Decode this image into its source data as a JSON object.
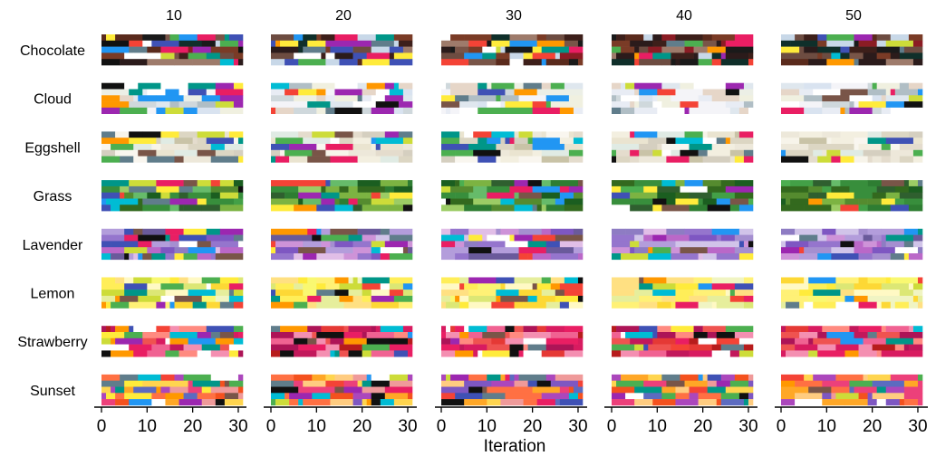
{
  "chart_data": {
    "type": "heatmap",
    "description_scope": "palette grid: rows are palette concepts, columns are checkpoints; each cell is a strip of colors with a shared x-axis",
    "column_titles": [
      "10",
      "20",
      "30",
      "40",
      "50"
    ],
    "row_labels": [
      "Chocolate",
      "Cloud",
      "Eggshell",
      "Grass",
      "Lavender",
      "Lemon",
      "Strawberry",
      "Sunset"
    ],
    "xlabel": "Iteration",
    "xlim": [
      0,
      31
    ],
    "xticks": [
      0,
      10,
      20,
      30
    ],
    "xtick_labels": [
      "0",
      "10",
      "20",
      "30"
    ],
    "strips_per_cell": 5,
    "grid": false,
    "palettes": {
      "Chocolate": [
        "#2b1b1b",
        "#3d1f1a",
        "#5a2a1c",
        "#7a3b26",
        "#1a1a1a",
        "#0f2f2a",
        "#6d4c41",
        "#8b1c24",
        "#9e7b6b",
        "#c8d8e8"
      ],
      "Cloud": [
        "#f4f4f8",
        "#e8ecf4",
        "#d9e3f0",
        "#cfd8dc",
        "#ffffff",
        "#f0f0e0",
        "#b0bec5",
        "#e6d6c8",
        "#ecefe6",
        "#dfe7ee"
      ],
      "Eggshell": [
        "#f3efe0",
        "#eae4d0",
        "#dcd6c3",
        "#f7f4ea",
        "#c9c3a7",
        "#ede8da",
        "#e0ebe4",
        "#d5cfc0",
        "#f9f6ef",
        "#e4dccd"
      ],
      "Grass": [
        "#2e7d32",
        "#388e3c",
        "#43a047",
        "#1b5e20",
        "#66bb6a",
        "#558b2f",
        "#7cb342",
        "#33691e",
        "#9ccc65",
        "#2f5f2f"
      ],
      "Lavender": [
        "#b39ddb",
        "#9575cd",
        "#7e57c2",
        "#ce93d8",
        "#ba68c8",
        "#e1bee7",
        "#8e7cc3",
        "#a58fd0",
        "#d1c4e9",
        "#6a5a9b"
      ],
      "Lemon": [
        "#fff176",
        "#ffee58",
        "#fdd835",
        "#f9f871",
        "#fff9c4",
        "#e6ee9c",
        "#dce775",
        "#ffeb3b",
        "#f0f4c3",
        "#ffe082"
      ],
      "Strawberry": [
        "#e53935",
        "#d81b60",
        "#c2185b",
        "#f06292",
        "#ef5350",
        "#ad1457",
        "#ff8a80",
        "#e91e63",
        "#b71c1c",
        "#f48fb1"
      ],
      "Sunset": [
        "#ff7043",
        "#ffa726",
        "#f4511e",
        "#ec407a",
        "#ab47bc",
        "#ffcc80",
        "#7e57c2",
        "#ef9a9a",
        "#5c6bc0",
        "#ffd54f"
      ],
      "noise": [
        "#111111",
        "#ffffff",
        "#2196f3",
        "#00bcd4",
        "#4caf50",
        "#ff9800",
        "#9c27b0",
        "#795548",
        "#607d8b",
        "#cddc39",
        "#f44336",
        "#ffeb3b",
        "#3f51b5",
        "#009688",
        "#e91e63"
      ]
    }
  }
}
